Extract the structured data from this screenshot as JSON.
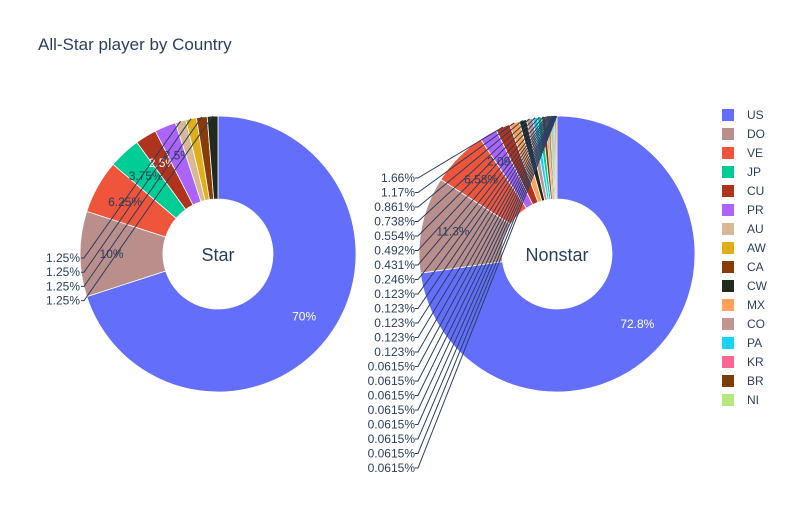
{
  "chart_data": {
    "type": "pie",
    "title": "All-Star player by Country",
    "hole": true,
    "legend_placement": "right",
    "colors": {
      "US": "#636efa",
      "DO": "#ba8e8a",
      "VE": "#ef553b",
      "JP": "#00cc96",
      "CU": "#b0331d",
      "PR": "#ab63fa",
      "AU": "#d8b894",
      "AW": "#e0ae18",
      "CA": "#8a3b0a",
      "CW": "#222a1d",
      "MX": "#ffa15a",
      "CO": "#c29593",
      "PA": "#19d3f3",
      "KR": "#ff6692",
      "BR": "#7a3e06",
      "NI": "#b6e880"
    },
    "legend": [
      "US",
      "DO",
      "VE",
      "JP",
      "CU",
      "PR",
      "AU",
      "AW",
      "CA",
      "CW",
      "MX",
      "CO",
      "PA",
      "KR",
      "BR",
      "NI"
    ],
    "pies": [
      {
        "name": "Star",
        "slices": [
          {
            "label": "US",
            "value": 70,
            "text": "70%"
          },
          {
            "label": "DO",
            "value": 10,
            "text": "10%"
          },
          {
            "label": "VE",
            "value": 6.25,
            "text": "6.25%"
          },
          {
            "label": "JP",
            "value": 3.75,
            "text": "3.75%"
          },
          {
            "label": "CU",
            "value": 2.5,
            "text": "2.5%"
          },
          {
            "label": "PR",
            "value": 2.5,
            "text": "2.5%"
          },
          {
            "label": "AU",
            "value": 1.25,
            "text": "1.25%"
          },
          {
            "label": "AW",
            "value": 1.25,
            "text": "1.25%"
          },
          {
            "label": "CA",
            "value": 1.25,
            "text": "1.25%"
          },
          {
            "label": "CW",
            "value": 1.25,
            "text": "1.25%"
          }
        ]
      },
      {
        "name": "Nonstar",
        "slices": [
          {
            "label": "US",
            "value": 72.8,
            "text": "72.8%"
          },
          {
            "label": "DO",
            "value": 11.3,
            "text": "11.3%"
          },
          {
            "label": "VE",
            "value": 6.58,
            "text": "6.58%"
          },
          {
            "label": "PR",
            "value": 2.09,
            "text": "2.09%"
          },
          {
            "label": "CU",
            "value": 1.66,
            "text": "1.66%"
          },
          {
            "label": "MX",
            "value": 1.17,
            "text": "1.17%"
          },
          {
            "label": "CW",
            "value": 0.861,
            "text": "0.861%"
          },
          {
            "label": "CO",
            "value": 0.738,
            "text": "0.738%"
          },
          {
            "label": "PA",
            "value": 0.554,
            "text": "0.554%"
          },
          {
            "label": "JP",
            "value": 0.492,
            "text": "0.492%"
          },
          {
            "label": "CA",
            "value": 0.431,
            "text": "0.431%"
          },
          {
            "label": "AU",
            "value": 0.246,
            "text": "0.246%"
          },
          {
            "label": "KR",
            "value": 0.123,
            "text": "0.123%"
          },
          {
            "label": "BR",
            "value": 0.123,
            "text": "0.123%"
          },
          {
            "label": "NI",
            "value": 0.123,
            "text": "0.123%"
          },
          {
            "label": "AW",
            "value": 0.123,
            "text": "0.123%"
          },
          {
            "label": "PA",
            "value": 0.123,
            "text": "0.123%"
          },
          {
            "label": "MX",
            "value": 0.0615,
            "text": "0.0615%"
          },
          {
            "label": "BR",
            "value": 0.0615,
            "text": "0.0615%"
          },
          {
            "label": "KR",
            "value": 0.0615,
            "text": "0.0615%"
          },
          {
            "label": "NI",
            "value": 0.0615,
            "text": "0.0615%"
          },
          {
            "label": "CO",
            "value": 0.0615,
            "text": "0.0615%"
          },
          {
            "label": "CW",
            "value": 0.0615,
            "text": "0.0615%"
          },
          {
            "label": "AW",
            "value": 0.0615,
            "text": "0.0615%"
          },
          {
            "label": "AU",
            "value": 0.0615,
            "text": "0.0615%"
          }
        ]
      }
    ]
  }
}
